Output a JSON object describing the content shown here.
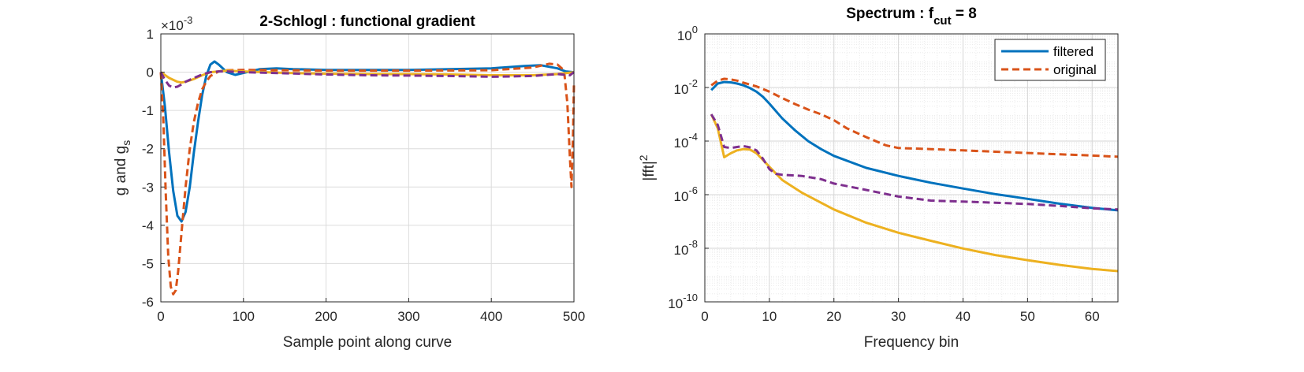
{
  "chart_data": [
    {
      "type": "line",
      "title": "2-Schlogl : functional gradient",
      "xlabel": "Sample point along curve",
      "ylabel": "g and g",
      "ylabel_sub": "s",
      "exponent_label": "×10",
      "exponent_power": "-3",
      "xlim": [
        0,
        500
      ],
      "ylim": [
        -6,
        1
      ],
      "xticks": [
        0,
        100,
        200,
        300,
        400,
        500
      ],
      "xtick_labels": [
        "0",
        "100",
        "200",
        "300",
        "400",
        "500"
      ],
      "yticks": [
        -6,
        -5,
        -4,
        -3,
        -2,
        -1,
        0,
        1
      ],
      "ytick_labels": [
        "-6",
        "-5",
        "-4",
        "-3",
        "-2",
        "-1",
        "0",
        "1"
      ],
      "grid": true,
      "series": [
        {
          "color": "#0072BD",
          "dash": "solid",
          "x": [
            0,
            5,
            10,
            15,
            20,
            25,
            30,
            35,
            40,
            45,
            50,
            55,
            60,
            65,
            70,
            80,
            90,
            100,
            120,
            140,
            160,
            200,
            250,
            300,
            350,
            400,
            440,
            460,
            480,
            490,
            500
          ],
          "y": [
            0,
            -0.9,
            -2.1,
            -3.1,
            -3.75,
            -3.9,
            -3.65,
            -3.0,
            -2.1,
            -1.3,
            -0.6,
            -0.1,
            0.2,
            0.28,
            0.2,
            0.0,
            -0.07,
            -0.02,
            0.08,
            0.1,
            0.08,
            0.06,
            0.06,
            0.06,
            0.08,
            0.1,
            0.16,
            0.18,
            0.1,
            0.02,
            0.0
          ]
        },
        {
          "color": "#D95319",
          "dash": "dashed",
          "x": [
            0,
            3,
            6,
            9,
            12,
            15,
            18,
            21,
            25,
            30,
            35,
            40,
            45,
            50,
            55,
            60,
            70,
            80,
            100,
            150,
            200,
            300,
            400,
            450,
            470,
            480,
            488,
            492,
            495,
            497,
            499,
            500
          ],
          "y": [
            0,
            -1.2,
            -3.2,
            -4.8,
            -5.6,
            -5.8,
            -5.7,
            -5.2,
            -4.2,
            -3.0,
            -2.0,
            -1.3,
            -0.8,
            -0.45,
            -0.25,
            -0.1,
            0.02,
            0.05,
            0.06,
            0.05,
            0.04,
            0.04,
            0.05,
            0.12,
            0.22,
            0.2,
            0.05,
            -0.8,
            -2.2,
            -3.0,
            -1.5,
            -0.3
          ]
        },
        {
          "color": "#EDB120",
          "dash": "solid",
          "x": [
            0,
            10,
            20,
            25,
            30,
            40,
            50,
            60,
            80,
            100,
            150,
            200,
            250,
            300,
            350,
            400,
            450,
            480,
            500
          ],
          "y": [
            0,
            -0.15,
            -0.25,
            -0.27,
            -0.25,
            -0.18,
            -0.08,
            0.0,
            0.04,
            0.02,
            -0.02,
            -0.04,
            -0.05,
            -0.05,
            -0.06,
            -0.08,
            -0.08,
            -0.05,
            0.0
          ]
        },
        {
          "color": "#7E2F8E",
          "dash": "dashed",
          "x": [
            0,
            5,
            10,
            15,
            20,
            25,
            30,
            40,
            50,
            60,
            70,
            80,
            100,
            150,
            200,
            250,
            300,
            350,
            400,
            450,
            480,
            495,
            500
          ],
          "y": [
            0,
            -0.2,
            -0.35,
            -0.4,
            -0.38,
            -0.32,
            -0.25,
            -0.15,
            -0.06,
            0.0,
            0.02,
            0.02,
            0.0,
            -0.03,
            -0.06,
            -0.08,
            -0.09,
            -0.1,
            -0.12,
            -0.1,
            -0.05,
            -0.08,
            0.0
          ]
        }
      ]
    },
    {
      "type": "line",
      "title_main": "Spectrum : f",
      "title_sub": "cut",
      "title_tail": " = 8",
      "xlabel": "Frequency bin",
      "ylabel": "|fft|",
      "ylabel_sup": "2",
      "xlim": [
        0,
        64
      ],
      "ylim": [
        1e-10,
        1
      ],
      "yscale": "log",
      "xticks": [
        0,
        10,
        20,
        30,
        40,
        50,
        60
      ],
      "xtick_labels": [
        "0",
        "10",
        "20",
        "30",
        "40",
        "50",
        "60"
      ],
      "yticks_exp": [
        0,
        -2,
        -4,
        -6,
        -8,
        -10
      ],
      "ytick_base": "10",
      "ytick_exp_labels": [
        "0",
        "-2",
        "-4",
        "-6",
        "-8",
        "-10"
      ],
      "grid": true,
      "minor_grid": true,
      "legend_position": "top-right",
      "legend": [
        {
          "name": "filtered",
          "color": "#0072BD",
          "dash": "solid"
        },
        {
          "name": "original",
          "color": "#D95319",
          "dash": "dashed"
        }
      ],
      "series": [
        {
          "name": "filtered",
          "color": "#0072BD",
          "dash": "solid",
          "x": [
            1,
            2,
            3,
            4,
            5,
            6,
            7,
            8,
            9,
            10,
            12,
            14,
            16,
            18,
            20,
            25,
            30,
            35,
            40,
            45,
            50,
            55,
            60,
            64
          ],
          "y": [
            0.008,
            0.014,
            0.016,
            0.0155,
            0.014,
            0.012,
            0.0095,
            0.007,
            0.0045,
            0.0025,
            0.0007,
            0.00025,
            0.0001,
            5e-05,
            2.8e-05,
            1e-05,
            5e-06,
            2.8e-06,
            1.7e-06,
            1.05e-06,
            7e-07,
            4.6e-07,
            3.2e-07,
            2.6e-07
          ]
        },
        {
          "name": "original",
          "color": "#D95319",
          "dash": "dashed",
          "x": [
            1,
            2,
            3,
            4,
            5,
            6,
            8,
            10,
            12,
            14,
            16,
            18,
            20,
            22,
            25,
            28,
            30,
            35,
            40,
            45,
            50,
            55,
            60,
            64
          ],
          "y": [
            0.012,
            0.018,
            0.021,
            0.02,
            0.018,
            0.015,
            0.011,
            0.007,
            0.004,
            0.0024,
            0.0015,
            0.001,
            0.0006,
            0.0003,
            0.00014,
            7e-05,
            5.5e-05,
            5e-05,
            4.5e-05,
            4e-05,
            3.6e-05,
            3.2e-05,
            2.9e-05,
            2.6e-05
          ]
        },
        {
          "color": "#EDB120",
          "dash": "solid",
          "x": [
            1,
            2,
            3,
            4,
            5,
            6,
            7,
            8,
            9,
            10,
            12,
            15,
            20,
            25,
            30,
            35,
            40,
            45,
            50,
            55,
            60,
            64
          ],
          "y": [
            0.001,
            0.0003,
            2.5e-05,
            3.5e-05,
            4.5e-05,
            5e-05,
            4.8e-05,
            3.5e-05,
            2e-05,
            1.1e-05,
            3.5e-06,
            1.2e-06,
            2.8e-07,
            9e-08,
            3.8e-08,
            1.9e-08,
            9.8e-09,
            5.6e-09,
            3.6e-09,
            2.4e-09,
            1.7e-09,
            1.4e-09
          ]
        },
        {
          "color": "#7E2F8E",
          "dash": "dashed",
          "x": [
            1,
            2,
            3,
            4,
            5,
            6,
            7,
            8,
            9,
            10,
            11,
            12,
            15,
            18,
            20,
            25,
            30,
            35,
            40,
            45,
            50,
            55,
            60,
            64
          ],
          "y": [
            0.001,
            0.0004,
            6e-05,
            5.5e-05,
            6e-05,
            6.5e-05,
            5.8e-05,
            4.5e-05,
            2.2e-05,
            9e-06,
            6e-06,
            5.5e-06,
            5e-06,
            3.8e-06,
            2.6e-06,
            1.5e-06,
            8.5e-07,
            6e-07,
            5.5e-07,
            5e-07,
            4.5e-07,
            3.8e-07,
            3.1e-07,
            2.8e-07
          ]
        }
      ]
    }
  ]
}
